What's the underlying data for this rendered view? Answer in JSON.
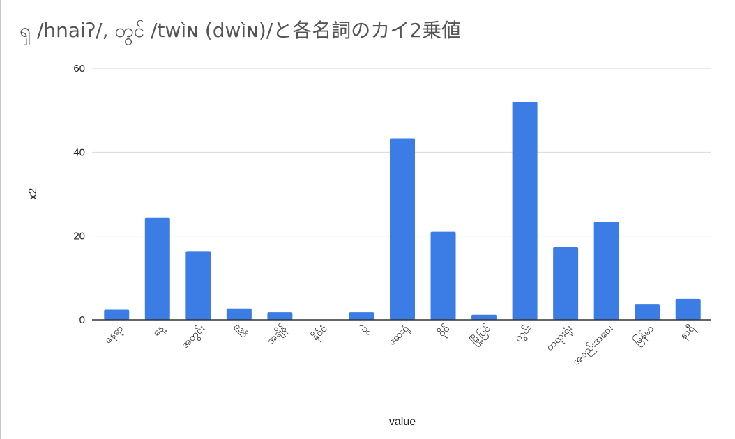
{
  "chart_data": {
    "type": "bar",
    "title": "ၡ /hnaiʔ/, တွင် /twìɴ (dwìɴ)/と各名詞のカイ2乗値",
    "xlabel": "value",
    "ylabel": "x2",
    "ylim": [
      0,
      60
    ],
    "yticks": [
      0,
      20,
      40,
      60
    ],
    "grid": true,
    "categories": [
      "နေရာ",
      "နေ့",
      "အတွင်း",
      "မြို့",
      "အချိန်",
      "နိုင်ငံ",
      "ပွဲ",
      "ဆေးရုံ",
      "ဝိုင်",
      "မြို့ပြင်",
      "ကွင်း",
      "တရားရုံး",
      "အစည်းအဝေး",
      "မြန်မာ",
      "နာရီ"
    ],
    "values": [
      2.4,
      24.3,
      16.4,
      2.7,
      1.8,
      0.0,
      1.8,
      43.3,
      21.0,
      1.2,
      52.0,
      17.3,
      23.4,
      3.8,
      5.0
    ],
    "bar_color": "#3b7de4"
  }
}
